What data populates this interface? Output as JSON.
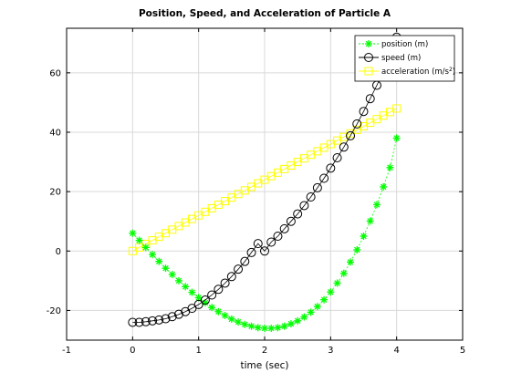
{
  "chart_data": {
    "type": "line",
    "title": "Position, Speed, and Acceleration of Particle A",
    "xlabel": "time (sec)",
    "ylabel": "",
    "xlim": [
      -1,
      5
    ],
    "ylim": [
      -30,
      75
    ],
    "xticks": [
      -1,
      0,
      1,
      2,
      3,
      4,
      5
    ],
    "yticks": [
      -20,
      0,
      20,
      40,
      60
    ],
    "grid": true,
    "legend_position": "top-right",
    "x": [
      0,
      0.1,
      0.2,
      0.3,
      0.4,
      0.5,
      0.6,
      0.7,
      0.8,
      0.9,
      1.0,
      1.1,
      1.2,
      1.3,
      1.4,
      1.5,
      1.6,
      1.7,
      1.8,
      1.9,
      2.0,
      2.1,
      2.2,
      2.3,
      2.4,
      2.5,
      2.6,
      2.7,
      2.8,
      2.9,
      3.0,
      3.1,
      3.2,
      3.3,
      3.4,
      3.5,
      3.6,
      3.7,
      3.8,
      3.9,
      4.0
    ],
    "series": [
      {
        "name": "position (m)",
        "color": "#00ff00",
        "marker": "asterisk",
        "values": [
          6.0,
          3.6,
          1.2,
          -1.2,
          -3.5,
          -5.8,
          -7.9,
          -10.0,
          -12.0,
          -13.9,
          -15.7,
          -17.4,
          -19.0,
          -20.4,
          -21.7,
          -22.9,
          -23.9,
          -24.7,
          -25.3,
          -25.8,
          -26.0,
          -26.0,
          -25.8,
          -25.3,
          -24.5,
          -23.5,
          -22.2,
          -20.6,
          -18.7,
          -16.4,
          -13.8,
          -10.8,
          -7.5,
          -3.7,
          0.4,
          5.0,
          10.1,
          15.6,
          21.6,
          28.1,
          38.0
        ]
      },
      {
        "name": "speed (m)",
        "color": "#000000",
        "marker": "circle",
        "values": [
          -24.0,
          -24.0,
          -23.8,
          -23.5,
          -23.2,
          -22.8,
          -22.1,
          -21.3,
          -20.4,
          -19.3,
          -18.0,
          -16.5,
          -14.8,
          -12.9,
          -10.8,
          -8.6,
          -6.1,
          -3.5,
          -0.5,
          2.5,
          0.0,
          3.0,
          5.0,
          7.5,
          10.0,
          12.5,
          15.3,
          18.2,
          21.3,
          24.5,
          27.9,
          31.4,
          35.0,
          38.8,
          42.8,
          47.0,
          51.3,
          55.8,
          60.4,
          65.3,
          72.0
        ]
      },
      {
        "name": "acceleration (m/s²)",
        "color": "#ffff00",
        "marker": "square",
        "values": [
          0.0,
          1.2,
          2.4,
          3.6,
          4.8,
          6.0,
          7.2,
          8.4,
          9.6,
          10.8,
          12.0,
          13.2,
          14.4,
          15.6,
          16.8,
          18.0,
          19.2,
          20.4,
          21.6,
          22.8,
          24.0,
          25.2,
          26.4,
          27.6,
          28.8,
          30.0,
          31.2,
          32.4,
          33.6,
          34.8,
          36.0,
          37.2,
          38.4,
          39.6,
          40.8,
          42.0,
          43.2,
          44.4,
          45.6,
          46.8,
          48.0
        ]
      }
    ]
  },
  "legend": {
    "position_label": "position (m)",
    "speed_label": "speed (m)",
    "accel_label_base": "acceleration (m/s",
    "accel_label_sup": "2",
    "accel_label_end": ")"
  }
}
